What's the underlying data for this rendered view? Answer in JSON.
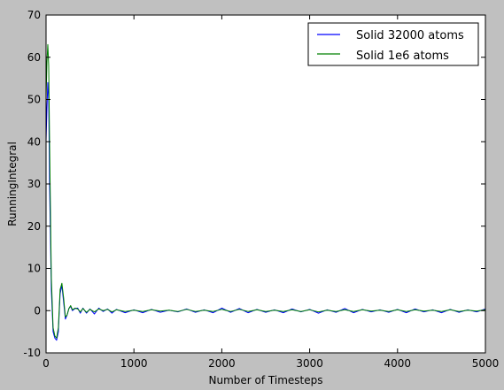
{
  "chart_data": {
    "type": "line",
    "title": "",
    "xlabel": "Number of Timesteps",
    "ylabel": "RunningIntegral",
    "xlim": [
      0,
      5000
    ],
    "ylim": [
      -10,
      70
    ],
    "xticks": [
      0,
      1000,
      2000,
      3000,
      4000,
      5000
    ],
    "yticks": [
      -10,
      0,
      10,
      20,
      30,
      40,
      50,
      60,
      70
    ],
    "grid": false,
    "legend_position": "top-right",
    "series": [
      {
        "name": "Solid 32000 atoms",
        "color": "#0000ff",
        "x": [
          0,
          10,
          20,
          30,
          40,
          60,
          80,
          100,
          120,
          140,
          160,
          180,
          200,
          220,
          240,
          260,
          280,
          300,
          330,
          360,
          390,
          420,
          460,
          500,
          550,
          600,
          650,
          700,
          750,
          800,
          900,
          1000,
          1100,
          1200,
          1300,
          1400,
          1500,
          1600,
          1700,
          1800,
          1900,
          2000,
          2100,
          2200,
          2300,
          2400,
          2500,
          2600,
          2700,
          2800,
          2900,
          3000,
          3100,
          3200,
          3300,
          3400,
          3500,
          3600,
          3700,
          3800,
          3900,
          4000,
          4100,
          4200,
          4300,
          4400,
          4500,
          4600,
          4700,
          4800,
          4900,
          5000
        ],
        "y": [
          40,
          48,
          54,
          50,
          30,
          5,
          -5,
          -6.5,
          -7,
          -5,
          4,
          6,
          2,
          -2,
          -1,
          0.5,
          1,
          0,
          0.5,
          0.6,
          -0.6,
          0.6,
          -0.6,
          0.4,
          -0.8,
          0.6,
          -0.2,
          0.4,
          -0.6,
          0.3,
          -0.5,
          0.2,
          -0.5,
          0.3,
          -0.4,
          0.1,
          -0.3,
          0.4,
          -0.4,
          0.2,
          -0.5,
          0.6,
          -0.4,
          0.5,
          -0.5,
          0.3,
          -0.4,
          0.2,
          -0.5,
          0.4,
          -0.3,
          0.3,
          -0.6,
          0.2,
          -0.4,
          0.5,
          -0.5,
          0.3,
          -0.3,
          0.2,
          -0.4,
          0.3,
          -0.5,
          0.4,
          -0.3,
          0.2,
          -0.5,
          0.3,
          -0.4,
          0.2,
          -0.3,
          0.4
        ]
      },
      {
        "name": "Solid 1e6 atoms",
        "color": "#008000",
        "x": [
          0,
          10,
          20,
          30,
          40,
          60,
          80,
          100,
          120,
          140,
          160,
          180,
          200,
          220,
          240,
          260,
          280,
          300,
          330,
          360,
          390,
          420,
          460,
          500,
          550,
          600,
          650,
          700,
          750,
          800,
          900,
          1000,
          1100,
          1200,
          1300,
          1400,
          1500,
          1600,
          1700,
          1800,
          1900,
          2000,
          2100,
          2200,
          2300,
          2400,
          2500,
          2600,
          2700,
          2800,
          2900,
          3000,
          3100,
          3200,
          3300,
          3400,
          3500,
          3600,
          3700,
          3800,
          3900,
          4000,
          4100,
          4200,
          4300,
          4400,
          4500,
          4600,
          4700,
          4800,
          4900,
          5000
        ],
        "y": [
          50,
          59,
          63,
          58,
          40,
          8,
          -4,
          -6,
          -6.5,
          -4,
          5,
          6.5,
          3,
          -1.5,
          -1,
          0.5,
          1.2,
          0.2,
          0.6,
          0.4,
          -0.3,
          0.5,
          -0.4,
          0.3,
          -0.3,
          0.4,
          0,
          0.3,
          -0.3,
          0.2,
          -0.2,
          0.1,
          -0.2,
          0.2,
          -0.1,
          0.1,
          -0.2,
          0.3,
          -0.2,
          0.1,
          -0.2,
          0.3,
          -0.2,
          0.3,
          -0.2,
          0.2,
          -0.2,
          0.1,
          -0.2,
          0.2,
          -0.2,
          0.2,
          -0.3,
          0.1,
          -0.2,
          0.2,
          -0.2,
          0.2,
          -0.1,
          0.1,
          -0.2,
          0.2,
          -0.2,
          0.2,
          -0.1,
          0.1,
          -0.2,
          0.2,
          -0.2,
          0.1,
          -0.1,
          0.2
        ]
      }
    ]
  }
}
